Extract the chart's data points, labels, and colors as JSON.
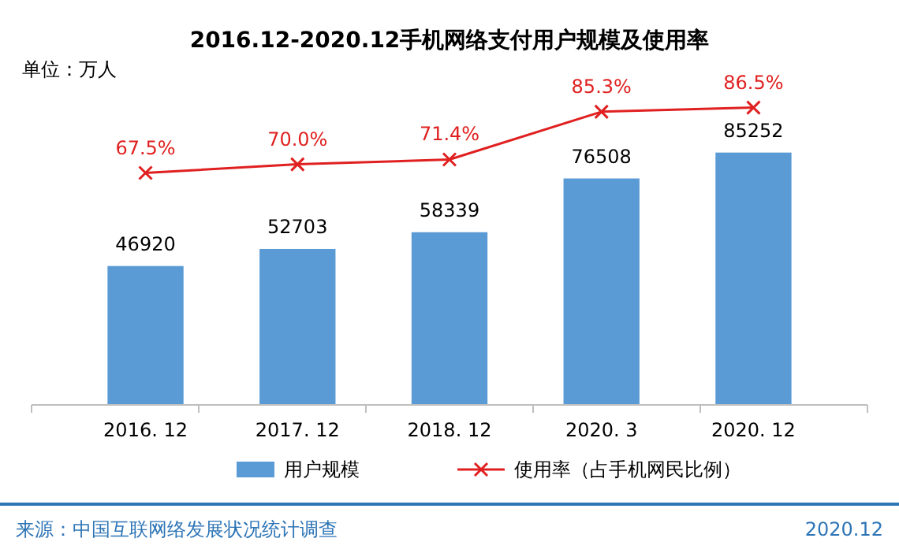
{
  "chart_data": {
    "type": "bar",
    "title": "2016.12-2020.12手机网络支付用户规模及使用率",
    "categories": [
      "2016. 12",
      "2017. 12",
      "2018. 12",
      "2020. 3",
      "2020. 12"
    ],
    "series": [
      {
        "name": "用户规模",
        "color": "#5b9bd5",
        "values": [
          46920,
          52703,
          58339,
          76508,
          85252
        ],
        "value_labels": [
          "46920",
          "52703",
          "58339",
          "76508",
          "85252"
        ]
      },
      {
        "name": "使用率（占手机网民比例）",
        "type": "line",
        "axis": "y2",
        "color": "#e02020",
        "marker": "cross",
        "values": [
          67.5,
          70.0,
          71.4,
          85.3,
          86.5
        ],
        "value_labels": [
          "67.5%",
          "70.0%",
          "71.4%",
          "85.3%",
          "86.5%"
        ]
      }
    ],
    "legend": "bottom",
    "annotations": [
      "单位：万人",
      "来源：中国互联网络发展状况统计调查",
      "2020.12"
    ]
  }
}
